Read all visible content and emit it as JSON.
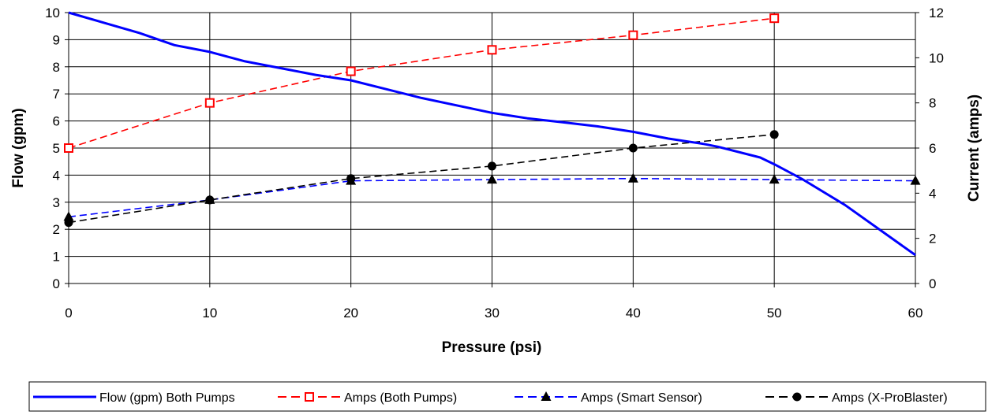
{
  "chart_data": {
    "type": "line",
    "xlabel": "Pressure (psi)",
    "ylabel_left": "Flow (gpm)",
    "ylabel_right": "Current (amps)",
    "xlim": [
      0,
      60
    ],
    "ylim_left": [
      0,
      10
    ],
    "ylim_right": [
      0,
      12
    ],
    "x_ticks": [
      "0",
      "10",
      "20",
      "30",
      "40",
      "50",
      "60"
    ],
    "y_left_ticks": [
      "0",
      "1",
      "2",
      "3",
      "4",
      "5",
      "6",
      "7",
      "8",
      "9",
      "10"
    ],
    "y_right_ticks": [
      "0",
      "2",
      "4",
      "6",
      "8",
      "10",
      "12"
    ],
    "grid": "horizontal",
    "legend_position": "bottom",
    "series": [
      {
        "name": "Flow (gpm) Both Pumps",
        "axis": "left",
        "color": "#0000ff",
        "style": "solid",
        "marker": "none",
        "points": [
          [
            0,
            10
          ],
          [
            5,
            9.25
          ],
          [
            7.5,
            8.8
          ],
          [
            10,
            8.55
          ],
          [
            12.5,
            8.2
          ],
          [
            15,
            7.95
          ],
          [
            17.5,
            7.7
          ],
          [
            20,
            7.5
          ],
          [
            25,
            6.85
          ],
          [
            30,
            6.3
          ],
          [
            32.5,
            6.1
          ],
          [
            35,
            5.95
          ],
          [
            37.5,
            5.8
          ],
          [
            40,
            5.6
          ],
          [
            42.5,
            5.35
          ],
          [
            45,
            5.15
          ],
          [
            46,
            5.05
          ],
          [
            49,
            4.65
          ],
          [
            50,
            4.4
          ],
          [
            52,
            3.85
          ],
          [
            55,
            2.9
          ],
          [
            60,
            1.05
          ]
        ]
      },
      {
        "name": "Amps (Both Pumps)",
        "axis": "right",
        "color": "#ff0000",
        "style": "dashed",
        "marker": "open-square",
        "points": [
          [
            0,
            6
          ],
          [
            10,
            8
          ],
          [
            20,
            9.4
          ],
          [
            30,
            10.35
          ],
          [
            40,
            11
          ],
          [
            50,
            11.75
          ]
        ]
      },
      {
        "name": "Amps (Smart Sensor)",
        "axis": "right",
        "color": "#0000ff",
        "style": "dashed",
        "marker": "triangle",
        "points": [
          [
            0,
            2.95
          ],
          [
            10,
            3.7
          ],
          [
            20,
            4.55
          ],
          [
            30,
            4.6
          ],
          [
            40,
            4.65
          ],
          [
            50,
            4.6
          ],
          [
            60,
            4.55
          ]
        ]
      },
      {
        "name": "Amps (X-ProBlaster)",
        "axis": "right",
        "color": "#000000",
        "style": "dashed",
        "marker": "circle",
        "points": [
          [
            0,
            2.7
          ],
          [
            10,
            3.7
          ],
          [
            20,
            4.65
          ],
          [
            30,
            5.2
          ],
          [
            40,
            6
          ],
          [
            50,
            6.6
          ]
        ]
      }
    ]
  }
}
